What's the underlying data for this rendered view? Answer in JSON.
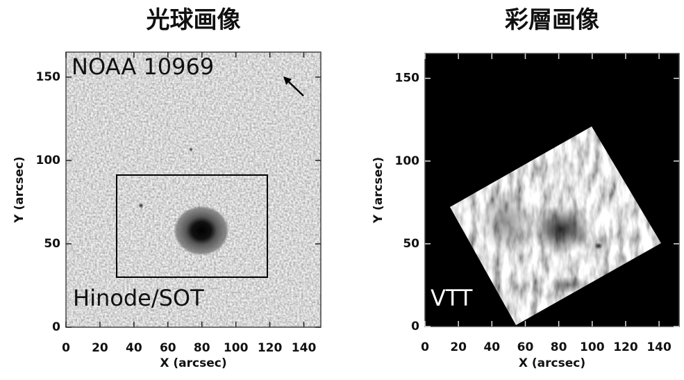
{
  "chart_data": [
    {
      "type": "image",
      "title": "光球画像",
      "xlabel": "X (arcsec)",
      "ylabel": "Y (arcsec)",
      "annotations": [
        "NOAA 10969",
        "Hinode/SOT"
      ],
      "xlim": [
        0,
        150
      ],
      "ylim": [
        0,
        165
      ],
      "xticks": [
        0,
        20,
        40,
        60,
        80,
        100,
        120,
        140
      ],
      "yticks": [
        0,
        50,
        100,
        150
      ]
    },
    {
      "type": "image",
      "title": "彩層画像",
      "xlabel": "X (arcsec)",
      "ylabel": "Y (arcsec)",
      "annotations": [
        "VTT"
      ],
      "xlim": [
        0,
        152
      ],
      "ylim": [
        0,
        165
      ],
      "xticks": [
        0,
        20,
        40,
        60,
        80,
        100,
        120,
        140
      ],
      "yticks": [
        0,
        50,
        100,
        150
      ]
    }
  ]
}
